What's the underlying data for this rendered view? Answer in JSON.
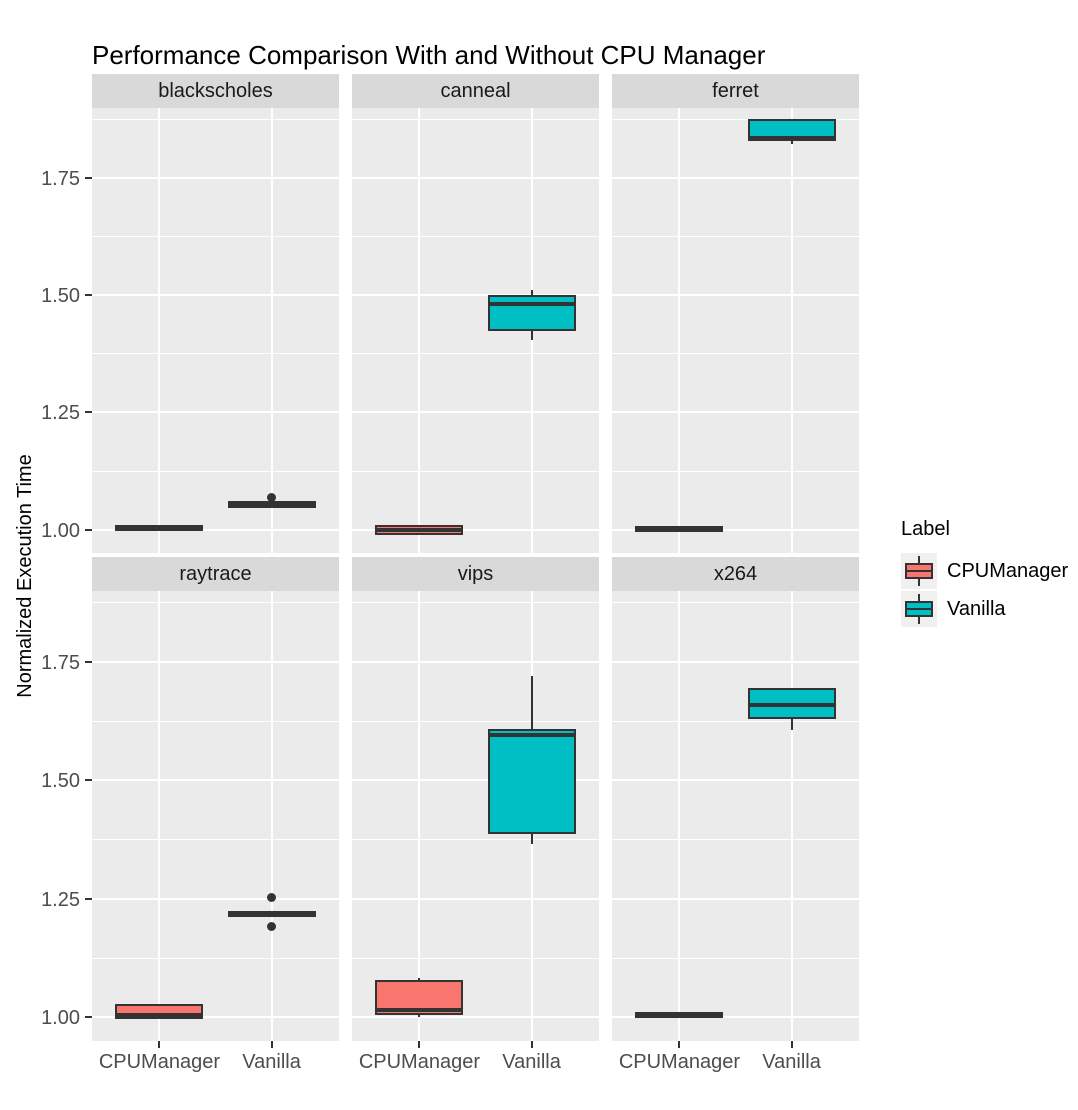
{
  "title": "Performance Comparison With and Without CPU Manager",
  "y_axis": {
    "label": "Normalized Execution Time",
    "tick_labels": [
      "1.00",
      "1.25",
      "1.50",
      "1.75"
    ],
    "major_ticks": [
      1.0,
      1.25,
      1.5,
      1.75
    ],
    "minor_ticks": [
      1.125,
      1.375,
      1.625,
      1.875
    ]
  },
  "x_axis": {
    "categories": [
      "CPUManager",
      "Vanilla"
    ]
  },
  "legend": {
    "title": "Label",
    "items": [
      {
        "label": "CPUManager",
        "color": "#F8766D"
      },
      {
        "label": "Vanilla",
        "color": "#00BFC4"
      }
    ]
  },
  "colors": {
    "panel_bg": "#EBEBEB",
    "strip_bg": "#D9D9D9",
    "gridline": "#FFFFFF",
    "box_border": "#333333",
    "axis_text": "#4D4D4D",
    "title_text": "#000000",
    "legend_key_bg": "#F0F0F0"
  },
  "chart_data": {
    "type": "boxplot",
    "facet_layout": {
      "columns": 3,
      "rows": 2
    },
    "ylim": [
      0.95,
      1.9
    ],
    "ylabel": "Normalized Execution Time",
    "title": "Performance Comparison With and Without CPU Manager",
    "grid": "major-and-minor-white-on-grey",
    "legend_position": "right",
    "facets": [
      {
        "name": "blackscholes",
        "boxes": [
          {
            "group": "CPUManager",
            "min": 1.0,
            "q1": 1.001,
            "median": 1.003,
            "q3": 1.005,
            "max": 1.006,
            "outliers": []
          },
          {
            "group": "Vanilla",
            "min": 1.048,
            "q1": 1.05,
            "median": 1.053,
            "q3": 1.056,
            "max": 1.058,
            "outliers": [
              1.068
            ]
          }
        ]
      },
      {
        "name": "canneal",
        "boxes": [
          {
            "group": "CPUManager",
            "min": 0.99,
            "q1": 0.993,
            "median": 1.0,
            "q3": 1.006,
            "max": 1.008,
            "outliers": []
          },
          {
            "group": "Vanilla",
            "min": 1.405,
            "q1": 1.428,
            "median": 1.482,
            "q3": 1.497,
            "max": 1.511,
            "outliers": []
          }
        ]
      },
      {
        "name": "ferret",
        "boxes": [
          {
            "group": "CPUManager",
            "min": 0.999,
            "q1": 1.0,
            "median": 1.002,
            "q3": 1.003,
            "max": 1.004,
            "outliers": []
          },
          {
            "group": "Vanilla",
            "min": 1.824,
            "q1": 1.833,
            "median": 1.837,
            "q3": 1.872,
            "max": 1.873,
            "outliers": []
          }
        ]
      },
      {
        "name": "raytrace",
        "boxes": [
          {
            "group": "CPUManager",
            "min": 1.0,
            "q1": 1.0,
            "median": 1.005,
            "q3": 1.024,
            "max": 1.025,
            "outliers": []
          },
          {
            "group": "Vanilla",
            "min": 1.213,
            "q1": 1.215,
            "median": 1.218,
            "q3": 1.221,
            "max": 1.222,
            "outliers": [
              1.254,
              1.191
            ]
          }
        ]
      },
      {
        "name": "vips",
        "boxes": [
          {
            "group": "CPUManager",
            "min": 1.0,
            "q1": 1.01,
            "median": 1.015,
            "q3": 1.075,
            "max": 1.082,
            "outliers": []
          },
          {
            "group": "Vanilla",
            "min": 1.365,
            "q1": 1.392,
            "median": 1.597,
            "q3": 1.605,
            "max": 1.72,
            "outliers": []
          }
        ]
      },
      {
        "name": "x264",
        "boxes": [
          {
            "group": "CPUManager",
            "min": 1.0,
            "q1": 1.002,
            "median": 1.004,
            "q3": 1.006,
            "max": 1.007,
            "outliers": []
          },
          {
            "group": "Vanilla",
            "min": 1.607,
            "q1": 1.633,
            "median": 1.66,
            "q3": 1.692,
            "max": 1.692,
            "outliers": []
          }
        ]
      }
    ]
  }
}
